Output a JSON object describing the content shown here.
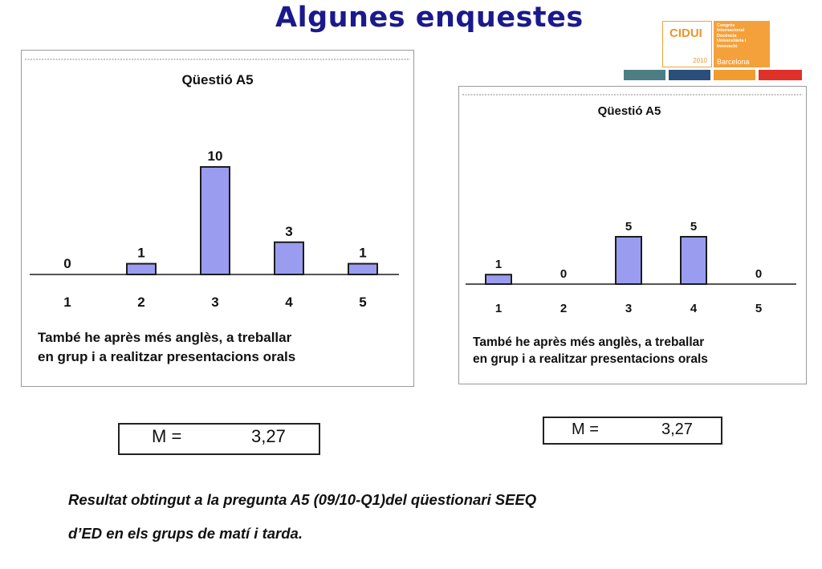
{
  "slide": {
    "title": "Algunes enquestes",
    "caption_line1": "Resultat obtingut a la pregunta A5 (09/10-Q1)del qüestionari  SEEQ",
    "caption_line2": "d’ED en els grups de matí i tarda."
  },
  "logo": {
    "name": "CIDUI",
    "year": "2010",
    "lines": [
      "Congrés",
      "Internacional",
      "Docència",
      "Universitària i",
      "Innovació"
    ],
    "city": "Barcelona",
    "strip_colors": [
      "#4e7e85",
      "#2a4f7a",
      "#f29b2e",
      "#e0312a"
    ]
  },
  "chart_data": [
    {
      "type": "bar",
      "title": "Qüestió A5",
      "categories": [
        "1",
        "2",
        "3",
        "4",
        "5"
      ],
      "values": [
        0,
        1,
        10,
        3,
        1
      ],
      "ylim": [
        0,
        10
      ],
      "grid": false,
      "bar_color": "#9a9cf0",
      "note_line1": "També he après més anglès, a treballar",
      "note_line2": "en grup i a realitzar presentacions orals",
      "mean_label": "M =",
      "mean_value": "3,27"
    },
    {
      "type": "bar",
      "title": "Qüestió A5",
      "categories": [
        "1",
        "2",
        "3",
        "4",
        "5"
      ],
      "values": [
        1,
        0,
        5,
        5,
        0
      ],
      "ylim": [
        0,
        10
      ],
      "grid": false,
      "bar_color": "#9a9cf0",
      "note_line1": "També he après més anglès, a treballar",
      "note_line2": "en grup i a realitzar presentacions orals",
      "mean_label": "M =",
      "mean_value": "3,27"
    }
  ]
}
